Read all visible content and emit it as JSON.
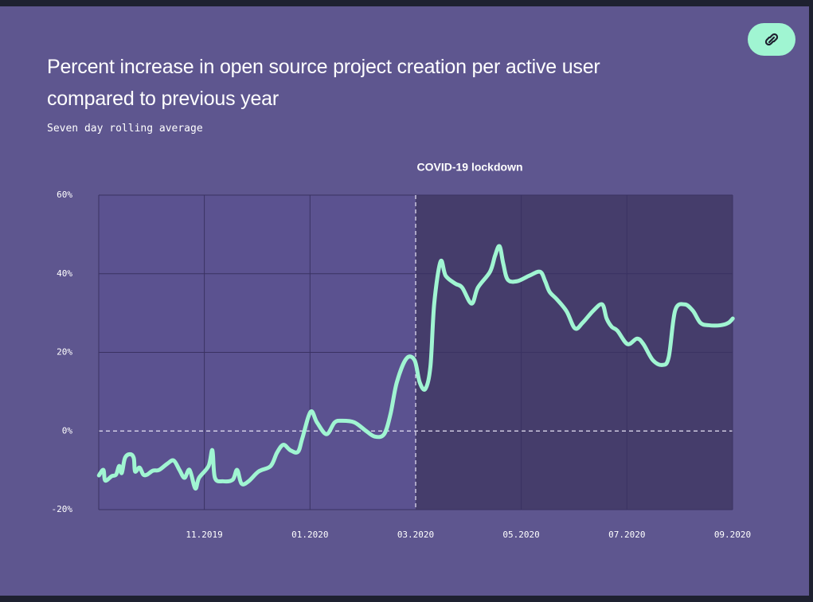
{
  "chart_data": {
    "type": "line",
    "title": "Percent increase in open source project creation per active user compared to previous year",
    "subtitle": "Seven day rolling average",
    "annotation": "COVID-19 lockdown",
    "shade_from": 2020.1667,
    "xlim": [
      2019.6667,
      2020.6667
    ],
    "xticks": [
      {
        "value": 2019.8333,
        "label": "11.2019"
      },
      {
        "value": 2020.0,
        "label": "01.2020"
      },
      {
        "value": 2020.1667,
        "label": "03.2020"
      },
      {
        "value": 2020.3333,
        "label": "05.2020"
      },
      {
        "value": 2020.5,
        "label": "07.2020"
      },
      {
        "value": 2020.6667,
        "label": "09.2020"
      }
    ],
    "ylim": [
      -20,
      60
    ],
    "yticks": [
      {
        "value": -20,
        "label": "-20%"
      },
      {
        "value": 0,
        "label": "0%"
      },
      {
        "value": 20,
        "label": "20%"
      },
      {
        "value": 40,
        "label": "40%"
      },
      {
        "value": 60,
        "label": "60%"
      }
    ],
    "grid": true,
    "x": [
      2019.667,
      2019.674,
      2019.677,
      2019.687,
      2019.694,
      2019.699,
      2019.703,
      2019.708,
      2019.716,
      2019.722,
      2019.724,
      2019.731,
      2019.737,
      2019.743,
      2019.752,
      2019.762,
      2019.775,
      2019.785,
      2019.794,
      2019.802,
      2019.81,
      2019.819,
      2019.825,
      2019.84,
      2019.846,
      2019.85,
      2019.863,
      2019.878,
      2019.885,
      2019.892,
      2019.903,
      2019.919,
      2019.938,
      2019.948,
      2019.958,
      2019.969,
      2019.981,
      2019.988,
      2020.001,
      2020.011,
      2020.026,
      2020.039,
      2020.051,
      2020.07,
      2020.087,
      2020.102,
      2020.117,
      2020.127,
      2020.137,
      2020.152,
      2020.165,
      2020.173,
      2020.182,
      2020.19,
      2020.196,
      2020.206,
      2020.214,
      2020.229,
      2020.24,
      2020.255,
      2020.265,
      2020.284,
      2020.292,
      2020.299,
      2020.305,
      2020.312,
      2020.327,
      2020.346,
      2020.363,
      2020.371,
      2020.378,
      2020.39,
      2020.405,
      2020.418,
      2020.43,
      2020.447,
      2020.461,
      2020.468,
      2020.476,
      2020.485,
      2020.501,
      2020.516,
      2020.526,
      2020.541,
      2020.556,
      2020.566,
      2020.576,
      2020.591,
      2020.604,
      2020.616,
      2020.629,
      2020.648,
      2020.66,
      2020.667
    ],
    "series": [
      {
        "name": "Percent increase",
        "color": "#a0f5d2",
        "values": [
          -11.3,
          -9.9,
          -12.6,
          -11.5,
          -11.1,
          -8.9,
          -10.7,
          -6.9,
          -5.9,
          -6.9,
          -10.3,
          -9.3,
          -11.1,
          -11.1,
          -10.1,
          -9.9,
          -8.3,
          -7.5,
          -9.9,
          -11.9,
          -9.9,
          -14.6,
          -11.9,
          -8.9,
          -4.9,
          -11.9,
          -12.8,
          -12.4,
          -9.9,
          -13.4,
          -12.8,
          -10.3,
          -8.9,
          -5.5,
          -3.5,
          -4.9,
          -5.3,
          -1.8,
          4.9,
          2.2,
          -0.8,
          2.2,
          2.6,
          2.2,
          0.2,
          -1.4,
          -0.8,
          4.3,
          12.4,
          18.4,
          18.0,
          12.4,
          10.7,
          16.4,
          32.4,
          43.1,
          39.5,
          37.5,
          36.5,
          32.4,
          36.5,
          40.5,
          44.6,
          47.0,
          42.5,
          38.5,
          38.1,
          39.5,
          40.5,
          38.1,
          35.4,
          33.4,
          30.4,
          26.1,
          27.5,
          30.6,
          32.2,
          28.6,
          26.5,
          25.5,
          22.1,
          23.5,
          22.1,
          18.0,
          16.8,
          18.8,
          30.6,
          32.2,
          30.6,
          27.5,
          26.9,
          26.9,
          27.5,
          28.6
        ]
      }
    ]
  }
}
